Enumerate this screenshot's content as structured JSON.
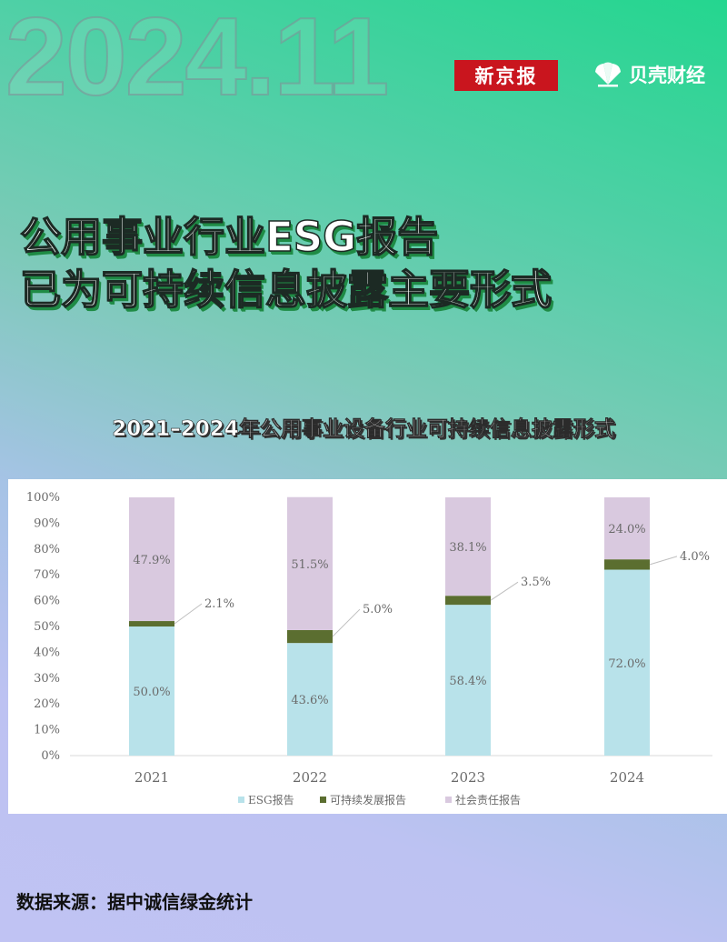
{
  "header": {
    "date": "2024.11",
    "brand_primary": "新京报",
    "brand_secondary": "贝壳财经"
  },
  "headline": {
    "line1": "公用事业行业ESG报告",
    "line2": "已为可持续信息披露主要形式"
  },
  "footer": {
    "source": "数据来源：据中诚信绿金统计"
  },
  "colors": {
    "esg": "#b8e2ea",
    "sustainability": "#5b6e30",
    "social": "#d9c9df",
    "brand_red": "#c9151e"
  },
  "chart_data": {
    "type": "bar",
    "stacked": true,
    "title": "2021–2024年公用事业设备行业可持续信息披露形式",
    "categories": [
      "2021",
      "2022",
      "2023",
      "2024"
    ],
    "ylim": [
      0,
      100
    ],
    "yticks": [
      "0%",
      "10%",
      "20%",
      "30%",
      "40%",
      "50%",
      "60%",
      "70%",
      "80%",
      "90%",
      "100%"
    ],
    "series": [
      {
        "name": "ESG报告",
        "color": "#b8e2ea",
        "values": [
          50.0,
          43.6,
          58.4,
          72.0
        ],
        "labels": [
          "50.0%",
          "43.6%",
          "58.4%",
          "72.0%"
        ]
      },
      {
        "name": "可持续发展报告",
        "color": "#5b6e30",
        "values": [
          2.1,
          5.0,
          3.5,
          4.0
        ],
        "labels": [
          "2.1%",
          "5.0%",
          "3.5%",
          "4.0%"
        ]
      },
      {
        "name": "社会责任报告",
        "color": "#d9c9df",
        "values": [
          47.9,
          51.5,
          38.1,
          24.0
        ],
        "labels": [
          "47.9%",
          "51.5%",
          "38.1%",
          "24.0%"
        ]
      }
    ],
    "legend_position": "bottom",
    "grid": false
  }
}
